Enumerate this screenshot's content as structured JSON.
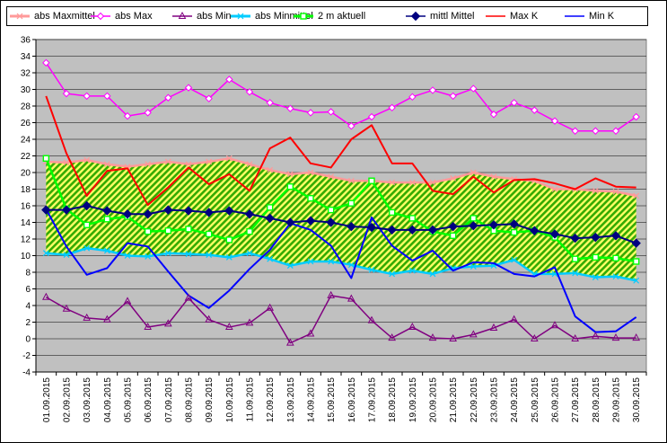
{
  "chart_data": {
    "type": "line",
    "title": "",
    "xlabel": "",
    "ylabel": "",
    "ylim": [
      -4,
      36
    ],
    "y_ticks": [
      -4,
      -2,
      0,
      2,
      4,
      6,
      8,
      10,
      12,
      14,
      16,
      18,
      20,
      22,
      24,
      26,
      28,
      30,
      32,
      34,
      36
    ],
    "grid": "horizontal",
    "legend_position": "top",
    "plot_background": "#c0c0c0",
    "categories": [
      "01.09.2015",
      "02.09.2015",
      "03.09.2015",
      "04.09.2015",
      "05.09.2015",
      "06.09.2015",
      "07.09.2015",
      "08.09.2015",
      "09.09.2015",
      "10.09.2015",
      "11.09.2015",
      "12.09.2015",
      "13.09.2015",
      "14.09.2015",
      "15.09.2015",
      "16.09.2015",
      "17.09.2015",
      "18.09.2015",
      "19.09.2015",
      "20.09.2015",
      "21.09.2015",
      "22.09.2015",
      "23.09.2015",
      "24.09.2015",
      "25.09.2015",
      "26.09.2015",
      "27.09.2015",
      "28.09.2015",
      "29.09.2015",
      "30.09.2015"
    ],
    "series": [
      {
        "name": "abs Maxmittel",
        "color": "#ff9999",
        "marker": "cross",
        "values": [
          21.3,
          21.2,
          21.5,
          21.0,
          20.7,
          21.0,
          21.3,
          21.0,
          21.3,
          21.7,
          21.0,
          20.3,
          19.8,
          20.0,
          19.5,
          19.0,
          19.0,
          18.8,
          18.8,
          18.8,
          19.3,
          20.0,
          19.5,
          19.2,
          19.0,
          18.0,
          18.0,
          17.8,
          17.7,
          17.2
        ]
      },
      {
        "name": "abs Max",
        "color": "#ff00ff",
        "marker": "diamond-open",
        "values": [
          33.2,
          29.5,
          29.2,
          29.2,
          26.8,
          27.2,
          29.0,
          30.2,
          28.9,
          31.2,
          29.7,
          28.4,
          27.7,
          27.2,
          27.3,
          25.6,
          26.7,
          27.8,
          29.1,
          29.9,
          29.2,
          30.1,
          27.0,
          28.4,
          27.5,
          26.2,
          25.0,
          25.0,
          25.0,
          26.7
        ]
      },
      {
        "name": "abs Min",
        "color": "#800080",
        "marker": "triangle-open",
        "values": [
          5.0,
          3.6,
          2.5,
          2.3,
          4.5,
          1.4,
          1.8,
          4.9,
          2.3,
          1.4,
          1.9,
          3.7,
          -0.5,
          0.6,
          5.2,
          4.8,
          2.2,
          0.1,
          1.4,
          0.1,
          0.0,
          0.5,
          1.3,
          2.3,
          0.0,
          1.6,
          0.0,
          0.3,
          0.1,
          0.1
        ]
      },
      {
        "name": "abs Minmittel",
        "color": "#00ccff",
        "marker": "cross",
        "values": [
          10.3,
          10.1,
          10.9,
          10.6,
          10.0,
          9.9,
          10.3,
          10.2,
          10.1,
          9.8,
          10.3,
          9.6,
          8.8,
          9.3,
          9.3,
          8.9,
          8.3,
          7.8,
          8.2,
          7.8,
          8.5,
          8.7,
          8.8,
          9.5,
          7.8,
          7.8,
          7.9,
          7.4,
          7.5,
          7.0
        ]
      },
      {
        "name": "2 m aktuell",
        "color": "#00ff00",
        "marker": "square-open",
        "values": [
          21.7,
          15.6,
          13.7,
          14.4,
          14.7,
          12.9,
          13.0,
          13.2,
          12.6,
          11.9,
          12.9,
          15.8,
          18.3,
          16.9,
          15.5,
          16.3,
          19.0,
          15.2,
          14.5,
          12.9,
          12.4,
          14.5,
          13.0,
          12.8,
          13.0,
          12.2,
          9.6,
          9.8,
          9.7,
          9.3
        ]
      },
      {
        "name": "mittl Mittel",
        "color": "#000080",
        "marker": "diamond-filled",
        "values": [
          15.5,
          15.5,
          16.0,
          15.4,
          15.0,
          15.0,
          15.5,
          15.4,
          15.2,
          15.4,
          15.0,
          14.5,
          14.0,
          14.2,
          14.0,
          13.5,
          13.4,
          13.1,
          13.1,
          13.1,
          13.5,
          13.6,
          13.7,
          13.8,
          13.0,
          12.6,
          12.1,
          12.2,
          12.4,
          11.5
        ]
      },
      {
        "name": "Max K",
        "color": "#ff0000",
        "marker": "none",
        "values": [
          29.2,
          22.3,
          17.2,
          20.2,
          20.5,
          16.1,
          18.2,
          20.6,
          18.6,
          19.8,
          17.8,
          22.9,
          24.2,
          21.1,
          20.6,
          24.0,
          25.7,
          21.1,
          21.1,
          17.8,
          17.4,
          19.5,
          17.6,
          19.1,
          19.2,
          18.7,
          18.0,
          19.3,
          18.3,
          18.2
        ]
      },
      {
        "name": "Min K",
        "color": "#0000ff",
        "marker": "none",
        "values": [
          15.6,
          11.1,
          7.7,
          8.5,
          11.5,
          11.1,
          8.1,
          5.2,
          3.7,
          5.8,
          8.4,
          10.7,
          13.9,
          13.1,
          11.2,
          7.3,
          14.6,
          11.2,
          9.4,
          10.6,
          8.2,
          9.2,
          9.1,
          7.8,
          7.5,
          8.6,
          2.7,
          0.8,
          0.9,
          2.6
        ]
      }
    ],
    "bands": [
      {
        "from": "abs Minmittel",
        "to": "abs Maxmittel",
        "fill": "green-yellow hatch"
      }
    ]
  }
}
